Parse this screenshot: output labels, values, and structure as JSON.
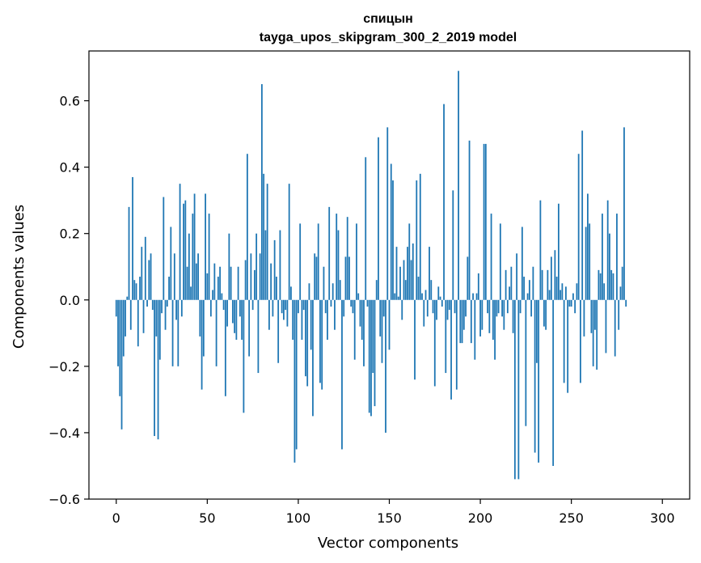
{
  "chart_data": {
    "type": "bar",
    "title": "спицын",
    "subtitle": "tayga_upos_skipgram_300_2_2019 model",
    "xlabel": "Vector components",
    "ylabel": "Components values",
    "xlim": [
      -15,
      315
    ],
    "ylim": [
      -0.6,
      0.75
    ],
    "x_ticks": [
      0,
      50,
      100,
      150,
      200,
      250,
      300
    ],
    "x_tick_labels": [
      "0",
      "50",
      "100",
      "150",
      "200",
      "250",
      "300"
    ],
    "y_ticks": [
      -0.6,
      -0.4,
      -0.2,
      0.0,
      0.2,
      0.4,
      0.6
    ],
    "y_tick_labels": [
      "−0.6",
      "−0.4",
      "−0.2",
      "0.0",
      "0.2",
      "0.4",
      "0.6"
    ],
    "bar_color": "#1f77b4",
    "values": [
      -0.05,
      -0.2,
      -0.29,
      -0.39,
      -0.17,
      -0.11,
      0.01,
      0.28,
      -0.09,
      0.37,
      0.06,
      0.05,
      -0.14,
      0.07,
      0.16,
      -0.1,
      0.19,
      -0.02,
      0.12,
      0.14,
      -0.03,
      -0.41,
      -0.11,
      -0.42,
      -0.18,
      -0.04,
      0.31,
      -0.09,
      -0.02,
      0.07,
      0.22,
      -0.2,
      0.14,
      -0.06,
      -0.2,
      0.35,
      -0.05,
      0.29,
      0.3,
      0.1,
      0.2,
      0.04,
      0.26,
      0.32,
      0.11,
      0.14,
      -0.11,
      -0.27,
      -0.17,
      0.32,
      0.08,
      0.26,
      -0.05,
      0.03,
      0.11,
      -0.2,
      0.07,
      0.1,
      0.02,
      -0.03,
      -0.29,
      -0.08,
      0.2,
      0.1,
      -0.07,
      -0.1,
      -0.12,
      0.1,
      -0.05,
      -0.12,
      -0.34,
      0.12,
      0.44,
      -0.17,
      0.14,
      -0.03,
      0.09,
      0.2,
      -0.22,
      0.14,
      0.65,
      0.38,
      0.21,
      0.35,
      -0.09,
      0.11,
      -0.05,
      0.18,
      0.07,
      -0.19,
      0.21,
      -0.04,
      -0.06,
      -0.03,
      -0.08,
      0.35,
      0.04,
      -0.12,
      -0.49,
      -0.45,
      -0.04,
      0.23,
      -0.12,
      -0.03,
      -0.23,
      -0.26,
      0.05,
      -0.15,
      -0.35,
      0.14,
      0.13,
      0.23,
      -0.25,
      -0.27,
      0.1,
      -0.04,
      -0.12,
      0.28,
      -0.02,
      0.05,
      -0.09,
      0.26,
      0.21,
      0.06,
      -0.45,
      -0.05,
      0.13,
      0.25,
      0.13,
      -0.02,
      -0.04,
      -0.18,
      0.23,
      0.02,
      -0.08,
      -0.12,
      -0.2,
      0.43,
      -0.02,
      -0.34,
      -0.35,
      -0.22,
      -0.32,
      0.06,
      0.49,
      -0.11,
      -0.19,
      -0.05,
      -0.4,
      0.52,
      -0.15,
      0.41,
      0.36,
      0.02,
      0.16,
      0.01,
      0.1,
      -0.06,
      0.12,
      0.06,
      0.16,
      0.23,
      0.12,
      0.17,
      -0.24,
      0.36,
      0.07,
      0.38,
      0.02,
      -0.08,
      0.03,
      -0.05,
      0.16,
      0.06,
      -0.04,
      -0.26,
      -0.06,
      0.04,
      0.01,
      -0.02,
      0.59,
      -0.22,
      -0.06,
      -0.03,
      -0.3,
      0.33,
      -0.04,
      -0.27,
      0.69,
      -0.13,
      -0.13,
      -0.09,
      -0.05,
      0.13,
      0.48,
      -0.13,
      0.02,
      -0.18,
      0.02,
      0.08,
      -0.11,
      -0.09,
      0.47,
      0.47,
      -0.04,
      -0.1,
      0.26,
      -0.12,
      -0.18,
      -0.05,
      -0.04,
      0.23,
      -0.05,
      -0.09,
      0.09,
      -0.04,
      0.04,
      0.1,
      -0.1,
      -0.54,
      0.14,
      -0.54,
      -0.04,
      0.22,
      0.07,
      -0.38,
      0.02,
      0.06,
      -0.05,
      0.1,
      -0.46,
      -0.19,
      -0.49,
      0.3,
      0.09,
      -0.08,
      -0.09,
      0.09,
      0.03,
      0.13,
      -0.5,
      0.15,
      0.07,
      0.29,
      0.03,
      0.05,
      -0.25,
      0.04,
      -0.28,
      -0.02,
      -0.02,
      0.02,
      -0.04,
      0.05,
      0.44,
      -0.25,
      0.51,
      -0.11,
      0.22,
      0.32,
      0.23,
      -0.1,
      -0.2,
      -0.09,
      -0.21,
      0.09,
      0.08,
      0.26,
      0.05,
      -0.16,
      0.3,
      0.2,
      0.09,
      0.08,
      -0.17,
      0.26,
      -0.09,
      0.04,
      0.1,
      0.52,
      -0.02
    ]
  }
}
